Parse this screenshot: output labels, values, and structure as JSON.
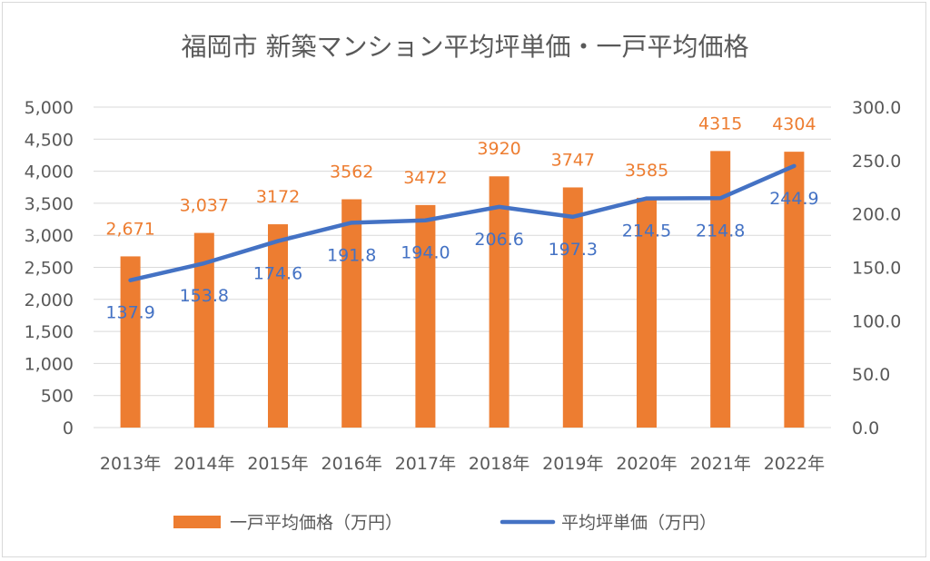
{
  "chart_data": {
    "type": "bar",
    "title": "福岡市 新築マンション平均坪単価・一戸平均価格",
    "categories": [
      "2013年",
      "2014年",
      "2015年",
      "2016年",
      "2017年",
      "2018年",
      "2019年",
      "2020年",
      "2021年",
      "2022年"
    ],
    "series": [
      {
        "name": "一戸平均価格（万円）",
        "type": "bar",
        "axis": "left",
        "color": "#ED7D31",
        "values": [
          2671,
          3037,
          3172,
          3562,
          3472,
          3920,
          3747,
          3585,
          4315,
          4304
        ],
        "labels": [
          "2,671",
          "3,037",
          "3172",
          "3562",
          "3472",
          "3920",
          "3747",
          "3585",
          "4315",
          "4304"
        ]
      },
      {
        "name": "平均坪単価（万円）",
        "type": "line",
        "axis": "right",
        "color": "#4472C4",
        "values": [
          137.9,
          153.8,
          174.6,
          191.8,
          194.0,
          206.6,
          197.3,
          214.5,
          214.8,
          244.9
        ],
        "labels": [
          "137.9",
          "153.8",
          "174.6",
          "191.8",
          "194.0",
          "206.6",
          "197.3",
          "214.5",
          "214.8",
          "244.9"
        ]
      }
    ],
    "y_left": {
      "min": 0,
      "max": 5000,
      "ticks": [
        "0",
        "500",
        "1,000",
        "1,500",
        "2,000",
        "2,500",
        "3,000",
        "3,500",
        "4,000",
        "4,500",
        "5,000"
      ]
    },
    "y_right": {
      "min": 0,
      "max": 300,
      "ticks": [
        "0.0",
        "50.0",
        "100.0",
        "150.0",
        "200.0",
        "250.0",
        "300.0"
      ]
    },
    "grid": true,
    "legend_position": "bottom"
  }
}
